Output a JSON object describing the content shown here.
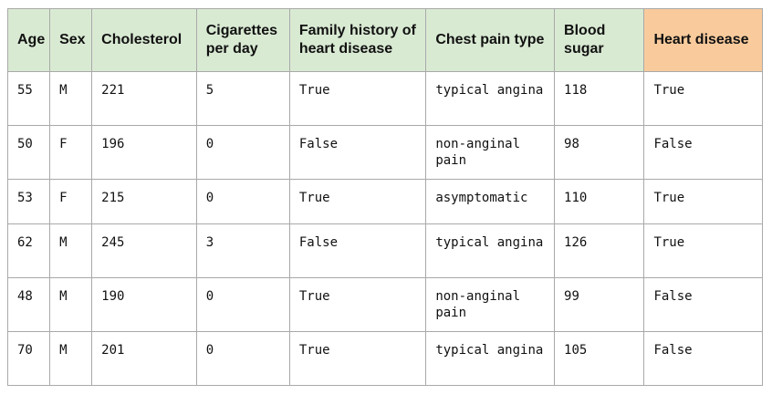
{
  "table": {
    "headers": [
      "Age",
      "Sex",
      "Cholesterol",
      "Cigarettes per day",
      "Family history of heart disease",
      "Chest pain type",
      "Blood sugar",
      "Heart disease"
    ],
    "rows": [
      [
        "55",
        "M",
        "221",
        "5",
        "True",
        "typical angina",
        "118",
        "True"
      ],
      [
        "50",
        "F",
        "196",
        "0",
        "False",
        "non-anginal pain",
        "98",
        "False"
      ],
      [
        "53",
        "F",
        "215",
        "0",
        "True",
        "asymptomatic",
        "110",
        "True"
      ],
      [
        "62",
        "M",
        "245",
        "3",
        "False",
        "typical angina",
        "126",
        "True"
      ],
      [
        "48",
        "M",
        "190",
        "0",
        "True",
        "non-anginal pain",
        "99",
        "False"
      ],
      [
        "70",
        "M",
        "201",
        "0",
        "True",
        "typical angina",
        "105",
        "False"
      ]
    ]
  },
  "colors": {
    "feature_header_bg": "#d9ead3",
    "target_header_bg": "#f9cb9c",
    "grid_line": "#a9a9a9"
  }
}
